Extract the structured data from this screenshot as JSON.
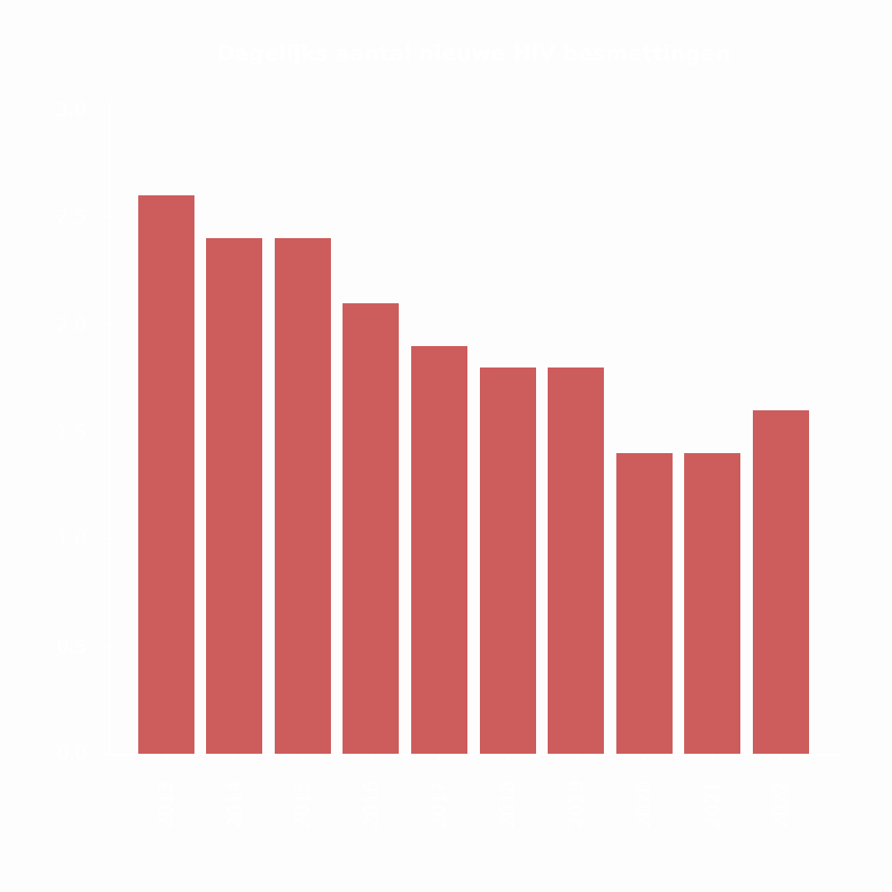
{
  "chart_data": {
    "type": "bar",
    "title": "Dagelijks aantal nieuwe HIV besmettingen",
    "categories": [
      "2013",
      "2014",
      "2015",
      "2016",
      "2017",
      "2018",
      "2019",
      "2020",
      "2021",
      "2022"
    ],
    "values": [
      2.6,
      2.4,
      2.4,
      2.1,
      1.9,
      1.8,
      1.8,
      1.4,
      1.4,
      1.6
    ],
    "xlabel": "",
    "ylabel": "",
    "ytick_labels": [
      "0.0",
      "0.5",
      "1.0",
      "1.5",
      "2.0",
      "2.5",
      "3.0"
    ],
    "ytick_values": [
      0.0,
      0.5,
      1.0,
      1.5,
      2.0,
      2.5,
      3.0
    ],
    "ylim": [
      0,
      3.05
    ],
    "xtick_rotation_degrees": 90,
    "grid": false,
    "legend": null,
    "bar_color": "#cd5c5c",
    "text_color": "#ffffff",
    "background_color": "#fdfdfd"
  }
}
